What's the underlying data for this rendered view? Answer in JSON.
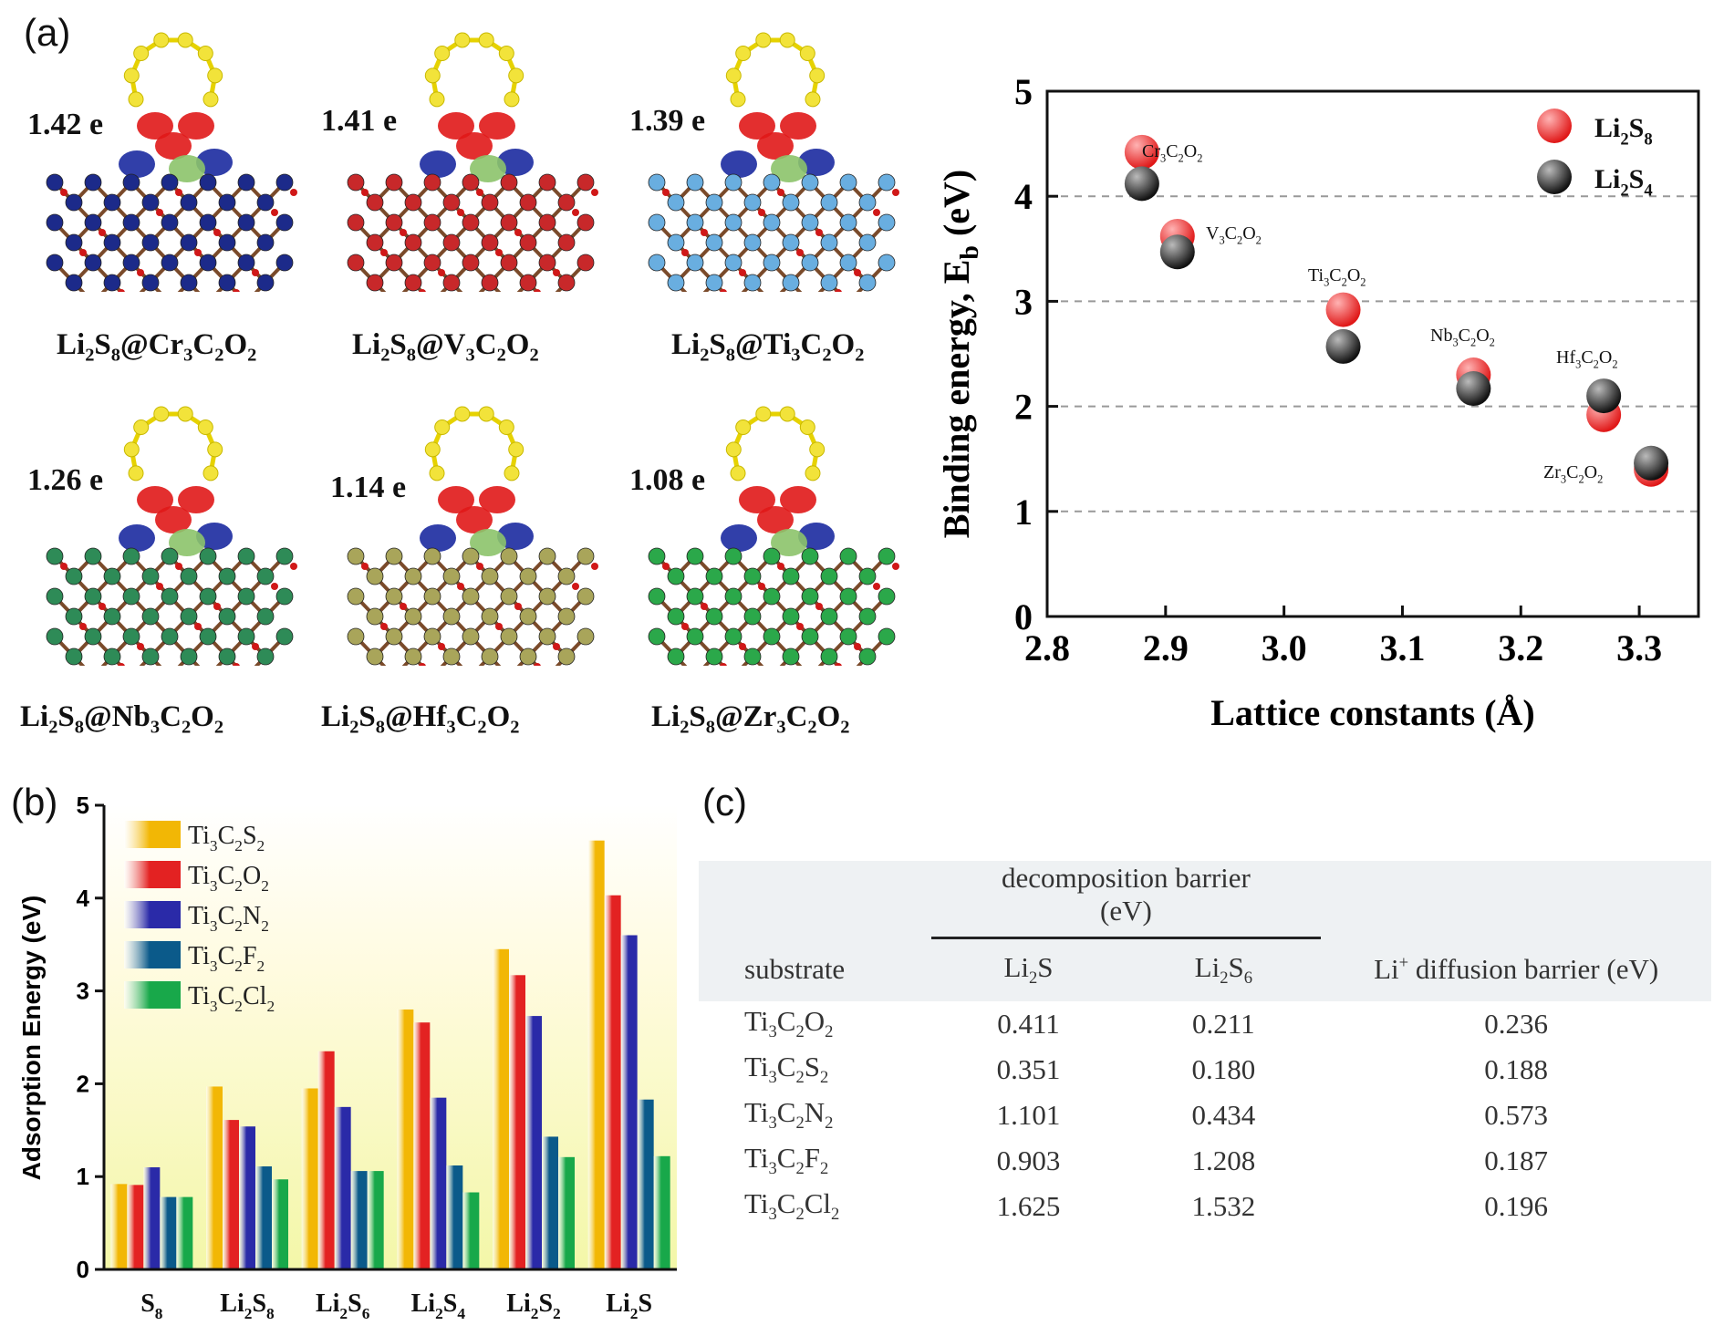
{
  "labels": {
    "a": "(a)",
    "b": "(b)",
    "c": "(c)"
  },
  "panel_a_structures": [
    {
      "charge": "1.42 e",
      "formula": [
        "Li",
        "2",
        "S",
        "8",
        "@Cr",
        "3",
        "C",
        "2",
        "O",
        "2"
      ],
      "metal_color": "#1c2a8a"
    },
    {
      "charge": "1.41 e",
      "formula": [
        "Li",
        "2",
        "S",
        "8",
        "@V",
        "3",
        "C",
        "2",
        "O",
        "2"
      ],
      "metal_color": "#c8282a"
    },
    {
      "charge": "1.39 e",
      "formula": [
        "Li",
        "2",
        "S",
        "8",
        "@Ti",
        "3",
        "C",
        "2",
        "O",
        "2"
      ],
      "metal_color": "#69aee0"
    },
    {
      "charge": "1.26 e",
      "formula": [
        "Li",
        "2",
        "S",
        "8",
        "@Nb",
        "3",
        "C",
        "2",
        "O",
        "2"
      ],
      "metal_color": "#2e8b57"
    },
    {
      "charge": "1.14 e",
      "formula": [
        "Li",
        "2",
        "S",
        "8",
        "@Hf",
        "3",
        "C",
        "2",
        "O",
        "2"
      ],
      "metal_color": "#a9a55a"
    },
    {
      "charge": "1.08 e",
      "formula": [
        "Li",
        "2",
        "S",
        "8",
        "@Zr",
        "3",
        "C",
        "2",
        "O",
        "2"
      ],
      "metal_color": "#2ba84a"
    }
  ],
  "colors": {
    "li2s8": "#e01818",
    "li2s4": "#111111",
    "ti3c2s2": "#f2b705",
    "ti3c2o2": "#e32222",
    "ti3c2n2": "#2a2aa8",
    "ti3c2f2": "#0b5a8a",
    "ti3c2cl2": "#18a84a"
  },
  "chart_data": [
    {
      "type": "scatter",
      "xlabel": "Lattice constants (Å)",
      "ylabel": "Binding energy, E_b (eV)",
      "xlim": [
        2.8,
        3.35
      ],
      "ylim": [
        0,
        5
      ],
      "xticks": [
        "2.8",
        "2.9",
        "3.0",
        "3.1",
        "3.2",
        "3.3"
      ],
      "yticks": [
        "0",
        "1",
        "2",
        "3",
        "4",
        "5"
      ],
      "grid": "dashed horizontal at 1,2,3,4",
      "legend_position": "top-right",
      "series": [
        {
          "name": "Li2S8",
          "x": [
            2.88,
            2.91,
            3.05,
            3.16,
            3.27,
            3.31
          ],
          "y": [
            4.42,
            3.62,
            2.92,
            2.3,
            1.92,
            1.4
          ]
        },
        {
          "name": "Li2S4",
          "x": [
            2.88,
            2.91,
            3.05,
            3.16,
            3.27,
            3.31
          ],
          "y": [
            4.12,
            3.47,
            2.57,
            2.17,
            2.1,
            1.46
          ]
        }
      ],
      "point_labels": [
        "Cr3C2O2",
        "V3C2O2",
        "Ti3C2O2",
        "Nb3C2O2",
        "Hf3C2O2",
        "Zr3C2O2"
      ],
      "legend": [
        "Li2S8",
        "Li2S4"
      ]
    },
    {
      "type": "bar",
      "ylabel": "Adsorption Energy (eV)",
      "ylim": [
        0,
        5
      ],
      "yticks": [
        "0",
        "1",
        "2",
        "3",
        "4",
        "5"
      ],
      "categories": [
        "S8",
        "Li2S8",
        "Li2S6",
        "Li2S4",
        "Li2S2",
        "Li2S"
      ],
      "legend_position": "top-left",
      "series": [
        {
          "name": "Ti3C2S2",
          "values": [
            0.92,
            1.97,
            1.95,
            2.8,
            3.45,
            4.62
          ]
        },
        {
          "name": "Ti3C2O2",
          "values": [
            0.91,
            1.61,
            2.35,
            2.66,
            3.17,
            4.03
          ]
        },
        {
          "name": "Ti3C2N2",
          "values": [
            1.1,
            1.54,
            1.75,
            1.85,
            2.73,
            3.6
          ]
        },
        {
          "name": "Ti3C2F2",
          "values": [
            0.78,
            1.11,
            1.06,
            1.12,
            1.43,
            1.83
          ]
        },
        {
          "name": "Ti3C2Cl2",
          "values": [
            0.78,
            0.97,
            1.06,
            0.83,
            1.21,
            1.22
          ]
        }
      ]
    },
    {
      "type": "table",
      "headers": {
        "group": "decomposition barrier",
        "group_unit": "(eV)",
        "substrate": "substrate",
        "li2s": "Li2S",
        "li2s6": "Li2S6",
        "diffusion": "Li+ diffusion barrier (eV)"
      },
      "rows": [
        {
          "substrate": "Ti3C2O2",
          "li2s": "0.411",
          "li2s6": "0.211",
          "diffusion": "0.236"
        },
        {
          "substrate": "Ti3C2S2",
          "li2s": "0.351",
          "li2s6": "0.180",
          "diffusion": "0.188"
        },
        {
          "substrate": "Ti3C2N2",
          "li2s": "1.101",
          "li2s6": "0.434",
          "diffusion": "0.573"
        },
        {
          "substrate": "Ti3C2F2",
          "li2s": "0.903",
          "li2s6": "1.208",
          "diffusion": "0.187"
        },
        {
          "substrate": "Ti3C2Cl2",
          "li2s": "1.625",
          "li2s6": "1.532",
          "diffusion": "0.196"
        }
      ]
    }
  ]
}
